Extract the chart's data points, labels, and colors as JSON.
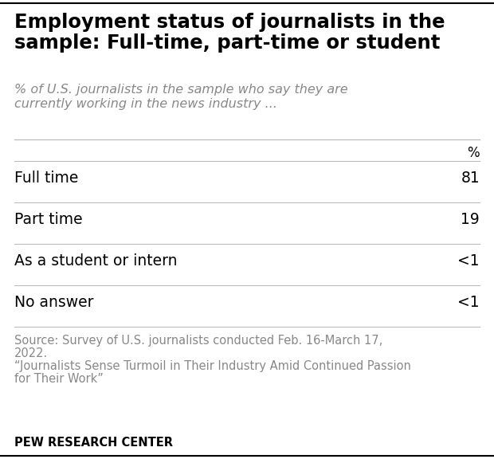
{
  "title_line1": "Employment status of journalists in the",
  "title_line2": "sample: Full-time, part-time or student",
  "subtitle_line1": "% of U.S. journalists in the sample who say they are",
  "subtitle_line2": "currently working in the news industry ...",
  "col_header": "%",
  "rows": [
    {
      "label": "Full time",
      "value": "81"
    },
    {
      "label": "Part time",
      "value": "19"
    },
    {
      "label": "As a student or intern",
      "value": "<1"
    },
    {
      "label": "No answer",
      "value": "<1"
    }
  ],
  "source_line1": "Source: Survey of U.S. journalists conducted Feb. 16-March 17,",
  "source_line2": "2022.",
  "source_line3": "“Journalists Sense Turmoil in Their Industry Amid Continued Passion",
  "source_line4": "for Their Work”",
  "footer": "PEW RESEARCH CENTER",
  "bg_color": "#ffffff",
  "title_color": "#000000",
  "subtitle_color": "#888888",
  "row_label_color": "#000000",
  "row_value_color": "#000000",
  "source_color": "#888888",
  "footer_color": "#000000",
  "line_color": "#bbbbbb",
  "top_line_color": "#000000",
  "title_fontsize": 17.5,
  "subtitle_fontsize": 11.5,
  "header_fontsize": 12,
  "row_fontsize": 13.5,
  "source_fontsize": 10.5,
  "footer_fontsize": 10.5
}
